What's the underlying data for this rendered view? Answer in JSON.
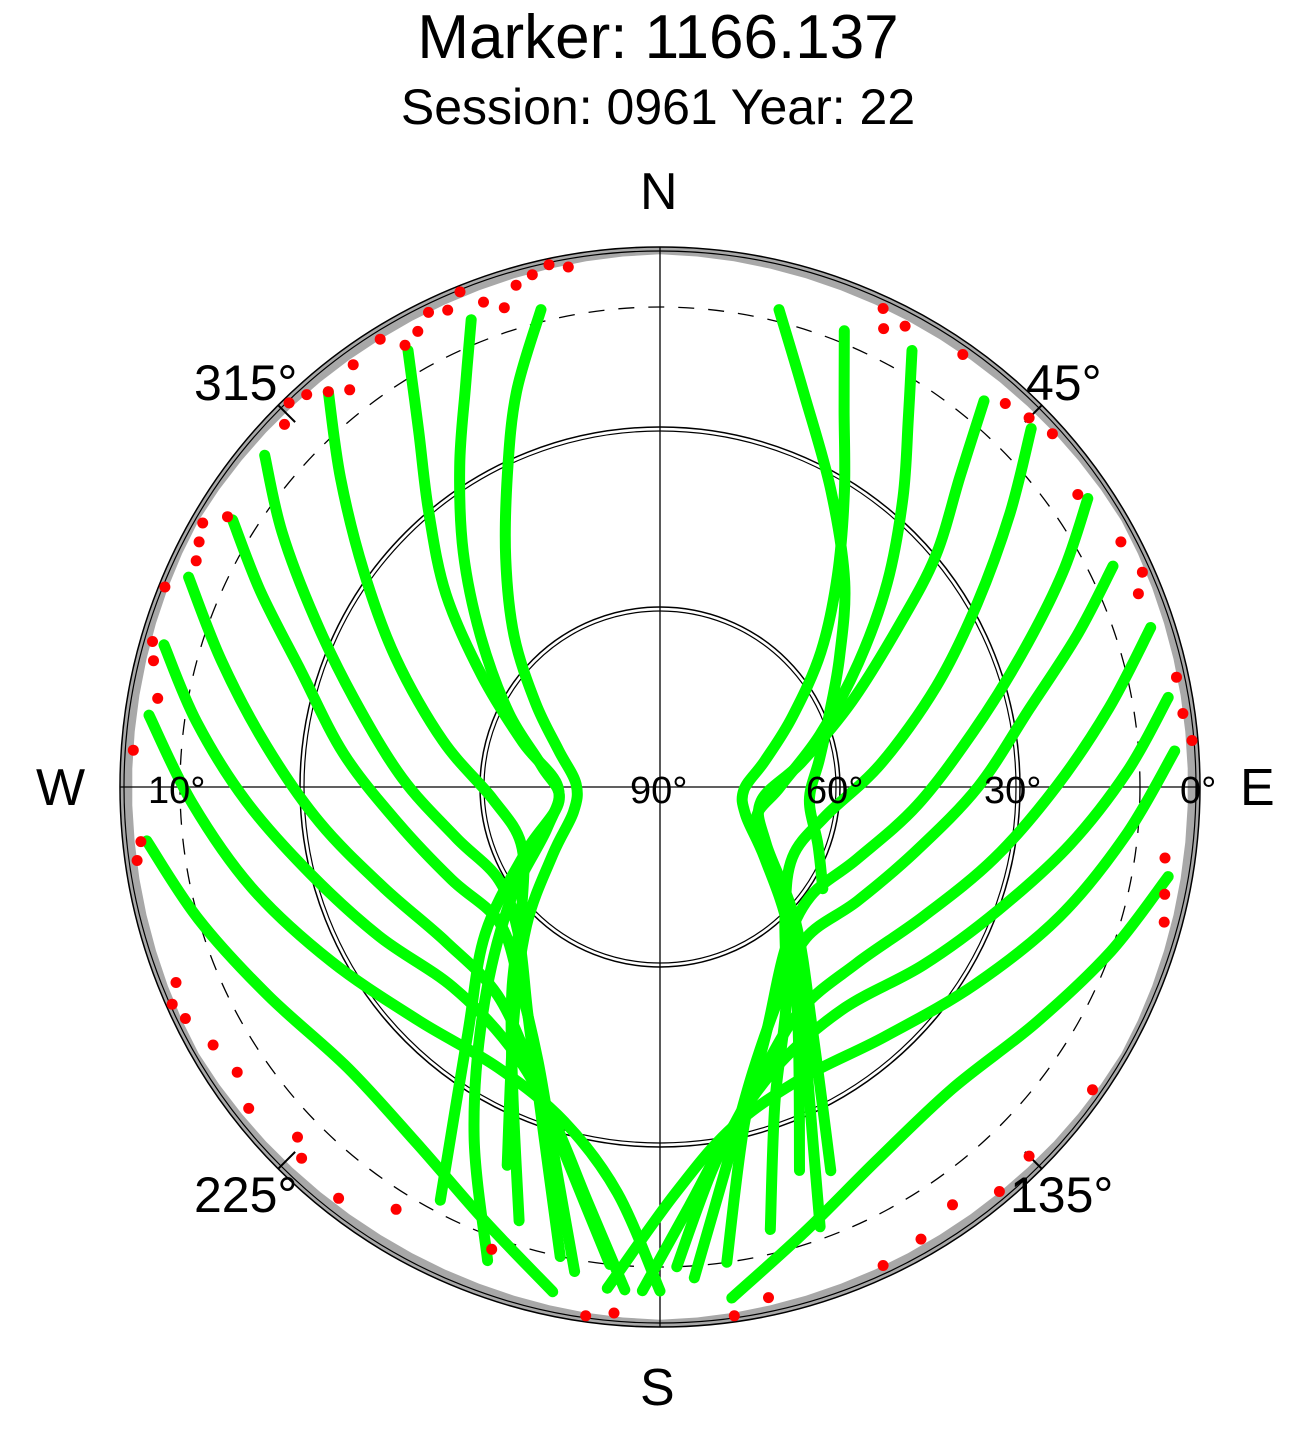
{
  "title": "Marker: 1166.137",
  "subtitle": "Session: 0961 Year: 22",
  "compass": {
    "north": "N",
    "south": "S",
    "east": "E",
    "west": "W"
  },
  "azimuth_labels": {
    "a45": "45°",
    "a135": "135°",
    "a225": "225°",
    "a315": "315°"
  },
  "elevation_labels": {
    "e0": "0°",
    "e10": "10°",
    "e30": "30°",
    "e60": "60°",
    "e90": "90°"
  },
  "colors": {
    "accepted": "#00ff00",
    "rejected": "#ff0000",
    "obstruction": "#a8a8a8",
    "grid": "#000000"
  },
  "chart_data": {
    "type": "scatter",
    "projection": "polar sky plot (azimuth clockwise from north, elevation 90° at center to 0° at rim)",
    "elevation_rings": [
      0,
      30,
      60
    ],
    "cutoff_elevation_dashed": 10,
    "grid": true,
    "series": [],
    "tracks": [
      {
        "color": "green",
        "az": [
          14,
          20,
          30,
          42,
          54,
          66,
          80,
          95,
          110,
          122
        ],
        "el": [
          8,
          20,
          33,
          44,
          53,
          59,
          63,
          65,
          62,
          58
        ]
      },
      {
        "color": "green",
        "az": [
          22,
          26,
          32,
          40,
          50,
          62,
          76,
          92,
          108,
          124,
          138,
          150,
          160
        ],
        "el": [
          8,
          20,
          32,
          44,
          55,
          65,
          72,
          76,
          75,
          69,
          58,
          44,
          22
        ]
      },
      {
        "color": "green",
        "az": [
          30,
          34,
          40,
          48,
          58,
          72,
          90,
          110,
          128,
          142,
          152,
          160
        ],
        "el": [
          6,
          16,
          27,
          39,
          51,
          62,
          70,
          73,
          65,
          52,
          38,
          12
        ]
      },
      {
        "color": "green",
        "az": [
          40,
          44,
          50,
          56,
          66,
          80,
          98,
          118,
          135,
          148,
          156
        ],
        "el": [
          6,
          18,
          30,
          42,
          55,
          66,
          73,
          70,
          58,
          42,
          20
        ]
      },
      {
        "color": "green",
        "az": [
          46,
          52,
          60,
          70,
          84,
          100,
          118,
          136,
          150,
          160,
          166
        ],
        "el": [
          4,
          16,
          29,
          41,
          53,
          62,
          65,
          60,
          48,
          34,
          14
        ]
      },
      {
        "color": "green",
        "az": [
          56,
          62,
          70,
          80,
          94,
          110,
          126,
          142,
          156,
          166,
          172
        ],
        "el": [
          4,
          14,
          26,
          37,
          47,
          55,
          59,
          56,
          46,
          32,
          10
        ]
      },
      {
        "color": "green",
        "az": [
          64,
          70,
          78,
          90,
          104,
          120,
          136,
          150,
          162,
          170,
          176
        ],
        "el": [
          6,
          16,
          27,
          37,
          46,
          52,
          55,
          50,
          40,
          26,
          8
        ]
      },
      {
        "color": "green",
        "az": [
          72,
          80,
          90,
          102,
          116,
          132,
          148,
          162,
          172,
          178
        ],
        "el": [
          4,
          14,
          24,
          33,
          41,
          46,
          46,
          38,
          26,
          10
        ]
      },
      {
        "color": "green",
        "az": [
          80,
          88,
          98,
          110,
          124,
          140,
          156,
          168,
          176,
          182
        ],
        "el": [
          4,
          12,
          21,
          30,
          37,
          42,
          40,
          32,
          20,
          6
        ]
      },
      {
        "color": "green",
        "az": [
          86,
          96,
          108,
          122,
          138,
          154,
          168,
          178,
          186
        ],
        "el": [
          4,
          12,
          20,
          28,
          34,
          36,
          32,
          22,
          6
        ]
      },
      {
        "color": "green",
        "az": [
          346,
          340,
          334,
          326,
          316,
          304,
          290,
          272,
          254,
          238,
          224,
          212,
          202
        ],
        "el": [
          8,
          20,
          32,
          44,
          55,
          65,
          72,
          76,
          75,
          69,
          58,
          44,
          22
        ]
      },
      {
        "color": "green",
        "az": [
          338,
          334,
          328,
          320,
          310,
          296,
          280,
          262,
          244,
          230,
          218,
          208
        ],
        "el": [
          6,
          16,
          27,
          39,
          51,
          62,
          70,
          73,
          65,
          52,
          38,
          12
        ]
      },
      {
        "color": "green",
        "az": [
          330,
          326,
          320,
          312,
          302,
          288,
          270,
          250,
          232,
          218,
          208,
          200
        ],
        "el": [
          6,
          18,
          30,
          42,
          55,
          66,
          73,
          70,
          58,
          42,
          24,
          6
        ]
      },
      {
        "color": "green",
        "az": [
          320,
          314,
          306,
          296,
          282,
          266,
          248,
          230,
          216,
          206,
          198
        ],
        "el": [
          4,
          16,
          29,
          41,
          53,
          62,
          65,
          60,
          48,
          34,
          14
        ]
      },
      {
        "color": "green",
        "az": [
          310,
          304,
          296,
          286,
          272,
          256,
          240,
          224,
          210,
          200,
          192
        ],
        "el": [
          4,
          14,
          26,
          37,
          47,
          55,
          59,
          56,
          46,
          32,
          10
        ]
      },
      {
        "color": "green",
        "az": [
          302,
          296,
          288,
          276,
          262,
          246,
          230,
          216,
          204,
          196,
          190
        ],
        "el": [
          6,
          16,
          27,
          37,
          46,
          52,
          55,
          50,
          40,
          26,
          8
        ]
      },
      {
        "color": "green",
        "az": [
          294,
          286,
          276,
          264,
          250,
          234,
          218,
          204,
          194,
          186
        ],
        "el": [
          4,
          14,
          24,
          33,
          41,
          46,
          46,
          38,
          26,
          10
        ]
      },
      {
        "color": "green",
        "az": [
          286,
          278,
          268,
          256,
          242,
          226,
          210,
          198,
          190,
          184
        ],
        "el": [
          4,
          12,
          21,
          30,
          37,
          42,
          40,
          32,
          20,
          6
        ]
      },
      {
        "color": "green",
        "az": [
          278,
          268,
          256,
          242,
          226,
          210,
          196,
          186,
          180
        ],
        "el": [
          4,
          12,
          20,
          28,
          34,
          36,
          32,
          22,
          6
        ]
      },
      {
        "color": "green",
        "az": [
          100,
          110,
          122,
          136,
          150,
          162,
          172
        ],
        "el": [
          4,
          10,
          16,
          20,
          18,
          12,
          4
        ]
      },
      {
        "color": "green",
        "az": [
          264,
          254,
          242,
          228,
          214,
          202,
          192
        ],
        "el": [
          4,
          10,
          16,
          20,
          18,
          12,
          4
        ]
      }
    ],
    "red_points": [
      {
        "az": 25,
        "el": 2
      },
      {
        "az": 26,
        "el": 5
      },
      {
        "az": 28,
        "el": 3
      },
      {
        "az": 35,
        "el": 2
      },
      {
        "az": 42,
        "el": 4
      },
      {
        "az": 45,
        "el": 3
      },
      {
        "az": 48,
        "el": 2
      },
      {
        "az": 55,
        "el": 5
      },
      {
        "az": 62,
        "el": 3
      },
      {
        "az": 66,
        "el": 2
      },
      {
        "az": 68,
        "el": 4
      },
      {
        "az": 78,
        "el": 2
      },
      {
        "az": 82,
        "el": 2
      },
      {
        "az": 85,
        "el": 1
      },
      {
        "az": 98,
        "el": 5
      },
      {
        "az": 102,
        "el": 4
      },
      {
        "az": 105,
        "el": 3
      },
      {
        "az": 125,
        "el": 2
      },
      {
        "az": 135,
        "el": 3
      },
      {
        "az": 140,
        "el": 2
      },
      {
        "az": 145,
        "el": 5
      },
      {
        "az": 150,
        "el": 3
      },
      {
        "az": 155,
        "el": 2
      },
      {
        "az": 168,
        "el": 3
      },
      {
        "az": 172,
        "el": 1
      },
      {
        "az": 185,
        "el": 2
      },
      {
        "az": 188,
        "el": 1
      },
      {
        "az": 200,
        "el": 8
      },
      {
        "az": 212,
        "el": 7
      },
      {
        "az": 218,
        "el": 3
      },
      {
        "az": 224,
        "el": 4
      },
      {
        "az": 226,
        "el": 6
      },
      {
        "az": 232,
        "el": 3
      },
      {
        "az": 236,
        "el": 5
      },
      {
        "az": 240,
        "el": 4
      },
      {
        "az": 244,
        "el": 2
      },
      {
        "az": 246,
        "el": 1
      },
      {
        "az": 248,
        "el": 3
      },
      {
        "az": 262,
        "el": 2
      },
      {
        "az": 264,
        "el": 3
      },
      {
        "az": 274,
        "el": 2
      },
      {
        "az": 280,
        "el": 5
      },
      {
        "az": 284,
        "el": 3
      },
      {
        "az": 286,
        "el": 2
      },
      {
        "az": 292,
        "el": 1
      },
      {
        "az": 296,
        "el": 4
      },
      {
        "az": 298,
        "el": 3
      },
      {
        "az": 300,
        "el": 2
      },
      {
        "az": 302,
        "el": 5
      },
      {
        "az": 314,
        "el": 3
      },
      {
        "az": 316,
        "el": 1
      },
      {
        "az": 318,
        "el": 2
      },
      {
        "az": 320,
        "el": 4
      },
      {
        "az": 322,
        "el": 6
      },
      {
        "az": 324,
        "el": 3
      },
      {
        "az": 328,
        "el": 2
      },
      {
        "az": 330,
        "el": 5
      },
      {
        "az": 332,
        "el": 4
      },
      {
        "az": 334,
        "el": 2
      },
      {
        "az": 336,
        "el": 3
      },
      {
        "az": 338,
        "el": 1
      },
      {
        "az": 340,
        "el": 4
      },
      {
        "az": 342,
        "el": 6
      },
      {
        "az": 344,
        "el": 3
      },
      {
        "az": 346,
        "el": 2
      },
      {
        "az": 348,
        "el": 1
      },
      {
        "az": 350,
        "el": 2
      }
    ]
  }
}
